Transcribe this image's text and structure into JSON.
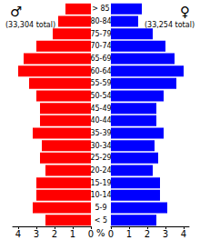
{
  "chart_data": {
    "type": "bar",
    "orientation": "horizontal",
    "categories": [
      "< 5",
      "5-9",
      "10-14",
      "15-19",
      "20-24",
      "25-29",
      "30-34",
      "35-39",
      "40-44",
      "45-49",
      "50-54",
      "55-59",
      "60-64",
      "65-69",
      "70-74",
      "75-79",
      "80-84",
      "> 85"
    ],
    "series": [
      {
        "name": "♂",
        "annotation": "(33,304 total)",
        "color": "#ff0000",
        "values": [
          2.5,
          3.2,
          3.0,
          3.0,
          2.5,
          2.8,
          2.7,
          3.2,
          2.8,
          2.8,
          3.0,
          3.4,
          4.0,
          3.7,
          3.0,
          2.1,
          1.8,
          1.4
        ]
      },
      {
        "name": "♀",
        "annotation": "(33,254 total)",
        "color": "#0000ff",
        "values": [
          2.5,
          3.1,
          2.7,
          2.7,
          2.3,
          2.6,
          2.4,
          2.9,
          2.5,
          2.5,
          2.9,
          3.6,
          4.0,
          3.5,
          3.0,
          2.3,
          1.5,
          1.7
        ]
      }
    ],
    "xlabel": "%",
    "xlim": [
      0,
      4.3
    ],
    "xticks": [
      0,
      1,
      2,
      3,
      4
    ]
  }
}
